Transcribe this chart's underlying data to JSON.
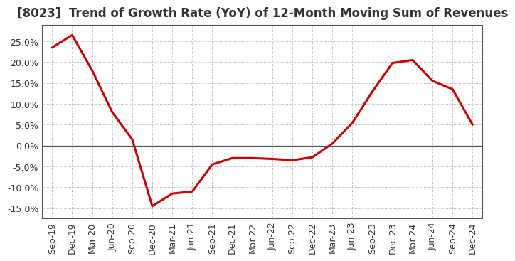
{
  "title": "[8023]  Trend of Growth Rate (YoY) of 12-Month Moving Sum of Revenues",
  "x_labels": [
    "Sep-19",
    "Dec-19",
    "Mar-20",
    "Jun-20",
    "Sep-20",
    "Dec-20",
    "Mar-21",
    "Jun-21",
    "Sep-21",
    "Dec-21",
    "Mar-22",
    "Jun-22",
    "Sep-22",
    "Dec-22",
    "Mar-23",
    "Jun-23",
    "Sep-23",
    "Dec-23",
    "Mar-24",
    "Jun-24",
    "Sep-24",
    "Dec-24"
  ],
  "y_values": [
    23.5,
    26.5,
    18.0,
    8.0,
    1.5,
    -14.5,
    -11.5,
    -11.0,
    -4.5,
    -3.0,
    -3.0,
    -3.2,
    -3.5,
    -2.8,
    0.5,
    5.5,
    13.0,
    19.8,
    20.5,
    15.5,
    13.5,
    5.0
  ],
  "ylim": [
    -17.5,
    29
  ],
  "yticks": [
    -15,
    -10,
    -5,
    0,
    5,
    10,
    15,
    20,
    25
  ],
  "line_color": "#cc0000",
  "line_width": 2.2,
  "bg_color": "#ffffff",
  "plot_bg_color": "#ffffff",
  "grid_color": "#999999",
  "title_fontsize": 12,
  "tick_fontsize": 9,
  "title_color": "#333333"
}
